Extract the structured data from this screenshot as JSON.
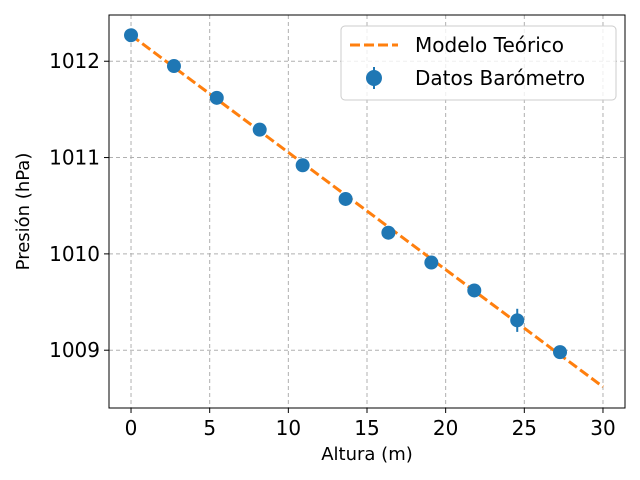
{
  "chart_data": {
    "type": "scatter",
    "xlabel": "Altura (m)",
    "ylabel": "Presión (hPa)",
    "xlim": [
      -1.4,
      31.4
    ],
    "ylim": [
      1008.4,
      1012.48
    ],
    "xticks": [
      0,
      5,
      10,
      15,
      20,
      25,
      30
    ],
    "yticks": [
      1009,
      1010,
      1011,
      1012
    ],
    "grid": true,
    "legend_position": "top-right",
    "series": [
      {
        "name": "Modelo Teórico",
        "kind": "line",
        "style": "dashed",
        "color": "#ff7f0e",
        "x": [
          0,
          30
        ],
        "y": [
          1012.27,
          1008.62
        ]
      },
      {
        "name": "Datos Barómetro",
        "kind": "errorbar-scatter",
        "color": "#1f77b4",
        "x": [
          0,
          2.73,
          5.45,
          8.18,
          10.91,
          13.64,
          16.36,
          19.09,
          21.82,
          24.55,
          27.27
        ],
        "y": [
          1012.27,
          1011.95,
          1011.62,
          1011.29,
          1010.92,
          1010.57,
          1010.22,
          1009.91,
          1009.62,
          1009.31,
          1008.98
        ],
        "yerr": [
          0.05,
          0.05,
          0.05,
          0.05,
          0.05,
          0.05,
          0.05,
          0.05,
          0.05,
          0.12,
          0.05
        ]
      }
    ]
  }
}
